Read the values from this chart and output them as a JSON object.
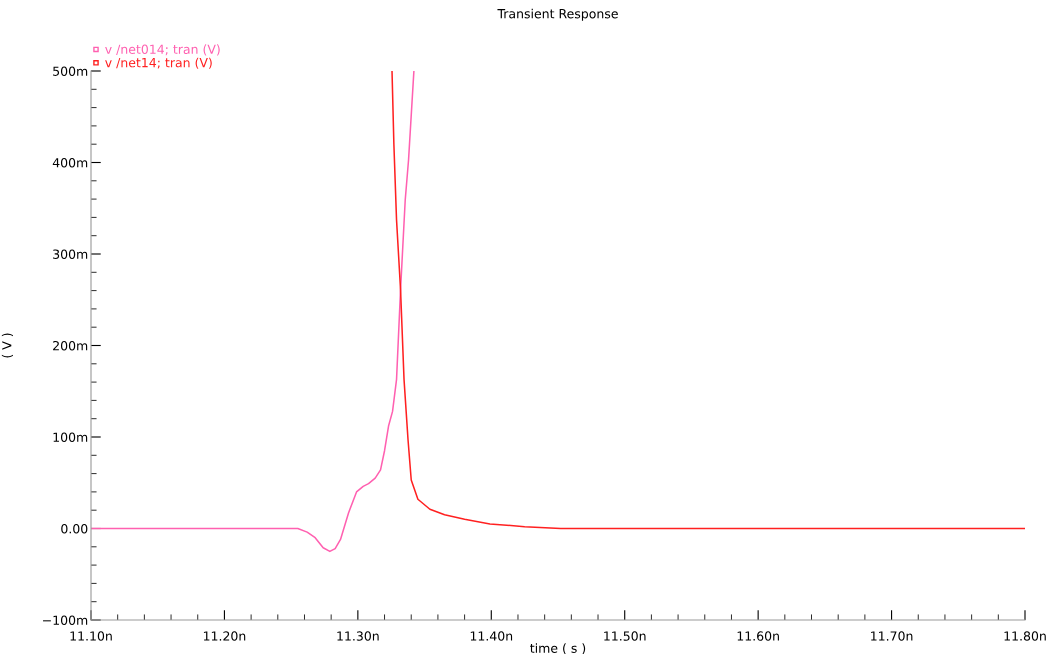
{
  "chart_data": {
    "type": "line",
    "title": "Transient Response",
    "xlabel": "time ( s )",
    "ylabel": "( V )",
    "xlim": [
      11.1,
      11.8
    ],
    "xticks": [
      {
        "value": 11.1,
        "label": "11.10n"
      },
      {
        "value": 11.2,
        "label": "11.20n"
      },
      {
        "value": 11.3,
        "label": "11.30n"
      },
      {
        "value": 11.4,
        "label": "11.40n"
      },
      {
        "value": 11.5,
        "label": "11.50n"
      },
      {
        "value": 11.6,
        "label": "11.60n"
      },
      {
        "value": 11.7,
        "label": "11.70n"
      },
      {
        "value": 11.8,
        "label": "11.80n"
      }
    ],
    "ylim": [
      -100,
      500
    ],
    "yticks": [
      {
        "value": -100,
        "label": "−100m"
      },
      {
        "value": 0,
        "label": "0.00"
      },
      {
        "value": 100,
        "label": "100m"
      },
      {
        "value": 200,
        "label": "200m"
      },
      {
        "value": 300,
        "label": "300m"
      },
      {
        "value": 400,
        "label": "400m"
      },
      {
        "value": 500,
        "label": "500m"
      }
    ],
    "grid": false,
    "legend": "top left",
    "series": [
      {
        "name": "v /net014; tran (V)",
        "color": "#ff60b0",
        "x": [
          11.1,
          11.255,
          11.262,
          11.268,
          11.274,
          11.279,
          11.283,
          11.287,
          11.293,
          11.299,
          11.304,
          11.308,
          11.313,
          11.317,
          11.32,
          11.323,
          11.326,
          11.329,
          11.332,
          11.3355,
          11.338,
          11.342
        ],
        "values": [
          0,
          0,
          -4,
          -10,
          -21,
          -25,
          -22,
          -12,
          17,
          40,
          46,
          49,
          55,
          64,
          85,
          112,
          128,
          163,
          261,
          359,
          403,
          500
        ]
      },
      {
        "name": "v /net14; tran (V)",
        "color": "#ff2020",
        "x": [
          11.3256,
          11.327,
          11.329,
          11.332,
          11.3346,
          11.3376,
          11.34,
          11.345,
          11.354,
          11.365,
          11.38,
          11.399,
          11.425,
          11.452,
          11.8
        ],
        "values": [
          500,
          420,
          337,
          261,
          163,
          97,
          53,
          32,
          21,
          15,
          10,
          5,
          2,
          0,
          0
        ]
      }
    ]
  }
}
